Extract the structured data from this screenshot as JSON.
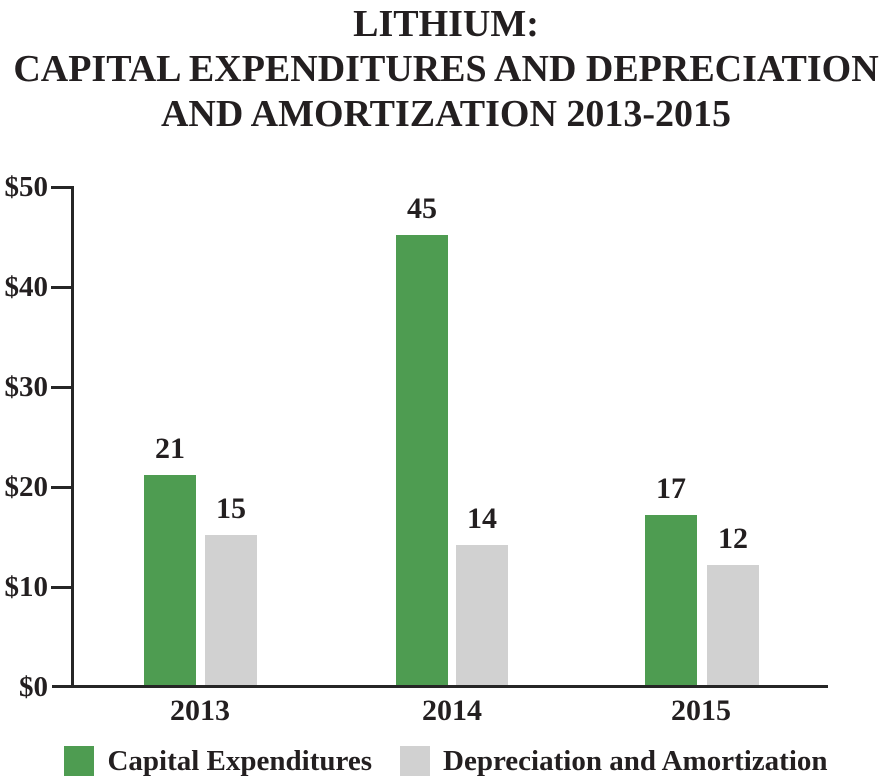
{
  "title": {
    "lines": [
      "LITHIUM:",
      "CAPITAL EXPENDITURES AND DEPRECIATION",
      "AND AMORTIZATION 2013-2015"
    ]
  },
  "chart_data": {
    "type": "bar",
    "title": "LITHIUM: CAPITAL EXPENDITURES AND DEPRECIATION AND AMORTIZATION 2013-2015",
    "categories": [
      "2013",
      "2014",
      "2015"
    ],
    "series": [
      {
        "name": "Capital Expenditures",
        "color": "#4e9c51",
        "values": [
          21,
          45,
          17
        ]
      },
      {
        "name": "Depreciation and Amortization",
        "color": "#d1d1d1",
        "values": [
          15,
          14,
          12
        ]
      }
    ],
    "yticks": [
      "$50",
      "$40",
      "$30",
      "$20",
      "$10",
      "$0"
    ],
    "ylim": [
      0,
      50
    ],
    "y_tick_step": 10,
    "xlabel": "",
    "ylabel": "",
    "grid": false,
    "legend_position": "bottom"
  },
  "colors": {
    "text": "#231f20",
    "axis": "#262626",
    "background": "#ffffff"
  }
}
